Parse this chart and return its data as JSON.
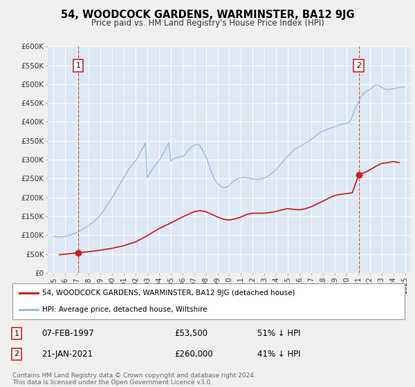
{
  "title": "54, WOODCOCK GARDENS, WARMINSTER, BA12 9JG",
  "subtitle": "Price paid vs. HM Land Registry's House Price Index (HPI)",
  "background_color": "#f0f0f0",
  "plot_bg_color": "#dce8f5",
  "grid_color": "#ffffff",
  "ylim": [
    0,
    600000
  ],
  "yticks": [
    0,
    50000,
    100000,
    150000,
    200000,
    250000,
    300000,
    350000,
    400000,
    450000,
    500000,
    550000,
    600000
  ],
  "ytick_labels": [
    "£0",
    "£50K",
    "£100K",
    "£150K",
    "£200K",
    "£250K",
    "£300K",
    "£350K",
    "£400K",
    "£450K",
    "£500K",
    "£550K",
    "£600K"
  ],
  "xmin": 1994.5,
  "xmax": 2025.5,
  "xticks": [
    1995,
    1996,
    1997,
    1998,
    1999,
    2000,
    2001,
    2002,
    2003,
    2004,
    2005,
    2006,
    2007,
    2008,
    2009,
    2010,
    2011,
    2012,
    2013,
    2014,
    2015,
    2016,
    2017,
    2018,
    2019,
    2020,
    2021,
    2022,
    2023,
    2024,
    2025
  ],
  "hpi_color": "#99bbdd",
  "price_color": "#cc2222",
  "sale1_x": 1997.1,
  "sale1_y": 53500,
  "sale1_label": "1",
  "sale1_date": "07-FEB-1997",
  "sale1_price": "£53,500",
  "sale1_hpi": "51% ↓ HPI",
  "sale2_x": 2021.05,
  "sale2_y": 260000,
  "sale2_label": "2",
  "sale2_date": "21-JAN-2021",
  "sale2_price": "£260,000",
  "sale2_hpi": "41% ↓ HPI",
  "legend_line1": "54, WOODCOCK GARDENS, WARMINSTER, BA12 9JG (detached house)",
  "legend_line2": "HPI: Average price, detached house, Wiltshire",
  "footnote": "Contains HM Land Registry data © Crown copyright and database right 2024.\nThis data is licensed under the Open Government Licence v3.0.",
  "hpi_x": [
    1995.0,
    1995.17,
    1995.33,
    1995.5,
    1995.67,
    1995.83,
    1996.0,
    1996.17,
    1996.33,
    1996.5,
    1996.67,
    1996.83,
    1997.0,
    1997.17,
    1997.33,
    1997.5,
    1997.67,
    1997.83,
    1998.0,
    1998.17,
    1998.33,
    1998.5,
    1998.67,
    1998.83,
    1999.0,
    1999.17,
    1999.33,
    1999.5,
    1999.67,
    1999.83,
    2000.0,
    2000.17,
    2000.33,
    2000.5,
    2000.67,
    2000.83,
    2001.0,
    2001.17,
    2001.33,
    2001.5,
    2001.67,
    2001.83,
    2002.0,
    2002.17,
    2002.33,
    2002.5,
    2002.67,
    2002.83,
    2003.0,
    2003.17,
    2003.33,
    2003.5,
    2003.67,
    2003.83,
    2004.0,
    2004.17,
    2004.33,
    2004.5,
    2004.67,
    2004.83,
    2005.0,
    2005.17,
    2005.33,
    2005.5,
    2005.67,
    2005.83,
    2006.0,
    2006.17,
    2006.33,
    2006.5,
    2006.67,
    2006.83,
    2007.0,
    2007.17,
    2007.33,
    2007.5,
    2007.67,
    2007.83,
    2008.0,
    2008.17,
    2008.33,
    2008.5,
    2008.67,
    2008.83,
    2009.0,
    2009.17,
    2009.33,
    2009.5,
    2009.67,
    2009.83,
    2010.0,
    2010.17,
    2010.33,
    2010.5,
    2010.67,
    2010.83,
    2011.0,
    2011.17,
    2011.33,
    2011.5,
    2011.67,
    2011.83,
    2012.0,
    2012.17,
    2012.33,
    2012.5,
    2012.67,
    2012.83,
    2013.0,
    2013.17,
    2013.33,
    2013.5,
    2013.67,
    2013.83,
    2014.0,
    2014.17,
    2014.33,
    2014.5,
    2014.67,
    2014.83,
    2015.0,
    2015.17,
    2015.33,
    2015.5,
    2015.67,
    2015.83,
    2016.0,
    2016.17,
    2016.33,
    2016.5,
    2016.67,
    2016.83,
    2017.0,
    2017.17,
    2017.33,
    2017.5,
    2017.67,
    2017.83,
    2018.0,
    2018.17,
    2018.33,
    2018.5,
    2018.67,
    2018.83,
    2019.0,
    2019.17,
    2019.33,
    2019.5,
    2019.67,
    2019.83,
    2020.0,
    2020.17,
    2020.33,
    2020.5,
    2020.67,
    2020.83,
    2021.0,
    2021.17,
    2021.33,
    2021.5,
    2021.67,
    2021.83,
    2022.0,
    2022.17,
    2022.33,
    2022.5,
    2022.67,
    2022.83,
    2023.0,
    2023.17,
    2023.33,
    2023.5,
    2023.67,
    2023.83,
    2024.0,
    2024.17,
    2024.33,
    2024.5,
    2024.67,
    2024.83,
    2025.0
  ],
  "hpi_y": [
    97000,
    96000,
    95500,
    95000,
    95500,
    96000,
    97000,
    98000,
    99500,
    101000,
    103000,
    105000,
    107000,
    110000,
    113000,
    116000,
    119000,
    122000,
    125000,
    129000,
    133000,
    138000,
    143000,
    148000,
    154000,
    161000,
    168000,
    176000,
    184000,
    192000,
    200000,
    208000,
    217000,
    226000,
    235000,
    244000,
    252000,
    261000,
    270000,
    278000,
    285000,
    291000,
    297000,
    305000,
    315000,
    325000,
    335000,
    344000,
    252000,
    261000,
    270000,
    278000,
    285000,
    291000,
    297000,
    305000,
    315000,
    325000,
    335000,
    344000,
    297000,
    300000,
    303000,
    305000,
    307000,
    308000,
    308000,
    312000,
    318000,
    325000,
    330000,
    335000,
    338000,
    340000,
    340000,
    337000,
    328000,
    318000,
    308000,
    295000,
    280000,
    265000,
    252000,
    243000,
    237000,
    232000,
    228000,
    226000,
    226000,
    228000,
    232000,
    237000,
    242000,
    246000,
    249000,
    251000,
    252000,
    253000,
    253000,
    252000,
    251000,
    250000,
    249000,
    248000,
    248000,
    248000,
    249000,
    250000,
    252000,
    254000,
    257000,
    261000,
    265000,
    269000,
    274000,
    280000,
    286000,
    292000,
    298000,
    304000,
    310000,
    315000,
    320000,
    325000,
    329000,
    332000,
    335000,
    338000,
    341000,
    344000,
    347000,
    350000,
    354000,
    358000,
    362000,
    366000,
    370000,
    373000,
    376000,
    378000,
    380000,
    382000,
    384000,
    385000,
    387000,
    389000,
    391000,
    393000,
    394000,
    395000,
    396000,
    398000,
    403000,
    415000,
    427000,
    440000,
    452000,
    462000,
    470000,
    476000,
    480000,
    483000,
    485000,
    490000,
    495000,
    498000,
    498000,
    495000,
    492000,
    489000,
    487000,
    486000,
    486000,
    487000,
    488000,
    489000,
    490000,
    491000,
    492000,
    492000,
    492000
  ],
  "price_x": [
    1995.5,
    1996.5,
    1997.1,
    1998.0,
    1999.0,
    2000.0,
    2001.0,
    2002.0,
    2002.8,
    2003.5,
    2004.0,
    2004.5,
    2005.0,
    2005.5,
    2006.0,
    2006.5,
    2007.0,
    2007.5,
    2008.0,
    2008.5,
    2009.0,
    2009.5,
    2010.0,
    2010.5,
    2011.0,
    2011.5,
    2012.0,
    2012.5,
    2013.0,
    2013.5,
    2014.0,
    2014.5,
    2015.0,
    2015.5,
    2016.0,
    2016.5,
    2017.0,
    2017.5,
    2018.0,
    2018.5,
    2019.0,
    2019.5,
    2020.0,
    2020.5,
    2021.05,
    2021.5,
    2022.0,
    2022.5,
    2023.0,
    2023.5,
    2024.0,
    2024.5
  ],
  "price_y": [
    48000,
    51000,
    53500,
    56000,
    60000,
    65000,
    72000,
    82000,
    95000,
    108000,
    117000,
    125000,
    132000,
    140000,
    148000,
    155000,
    162000,
    165000,
    162000,
    155000,
    148000,
    142000,
    140000,
    143000,
    148000,
    155000,
    158000,
    158000,
    158000,
    160000,
    163000,
    167000,
    170000,
    168000,
    167000,
    170000,
    175000,
    183000,
    190000,
    198000,
    205000,
    208000,
    210000,
    212000,
    260000,
    265000,
    273000,
    282000,
    290000,
    292000,
    295000,
    292000
  ]
}
